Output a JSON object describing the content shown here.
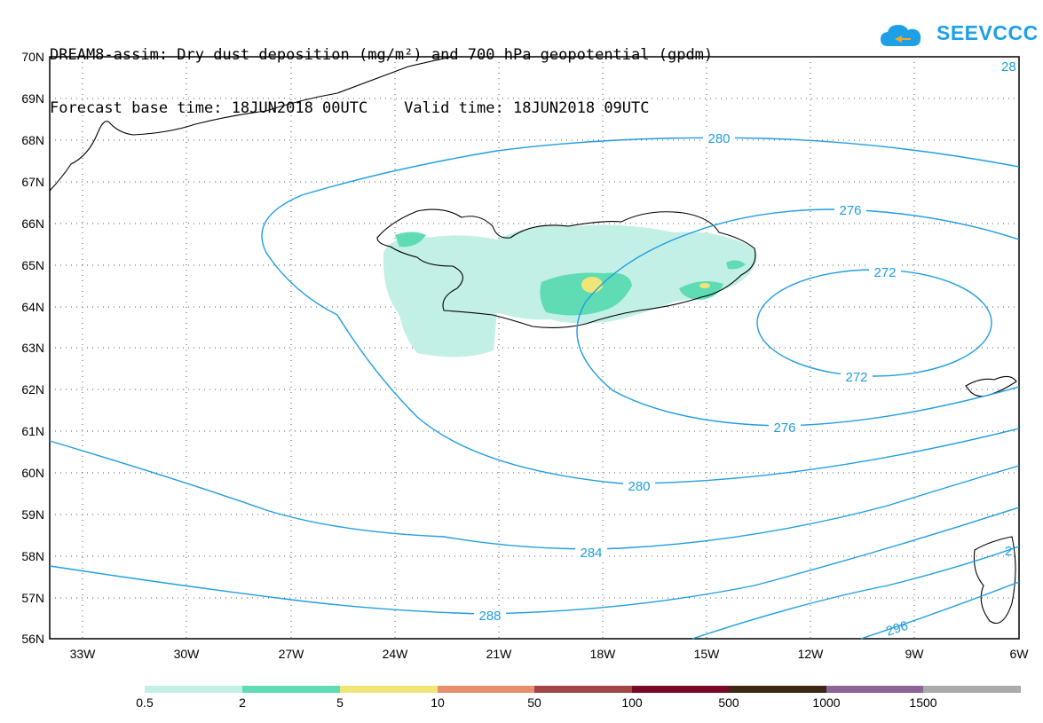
{
  "header": {
    "line1": "DREAM8-assim: Dry dust deposition (mg/m²) and 700 hPa geopotential (gpdm)",
    "line2": "Forecast base time: 18JUN2018 00UTC    Valid time: 18JUN2018 09UTC"
  },
  "logo": {
    "text": "SEEVCCC",
    "color": "#1ea0e6"
  },
  "map": {
    "lat_labels": [
      "70N",
      "69N",
      "68N",
      "67N",
      "66N",
      "65N",
      "64N",
      "63N",
      "62N",
      "61N",
      "60N",
      "59N",
      "58N",
      "57N",
      "56N"
    ],
    "lon_labels": [
      "33W",
      "30W",
      "27W",
      "24W",
      "21W",
      "18W",
      "15W",
      "12W",
      "9W",
      "6W"
    ],
    "contour_color": "#1f9de0",
    "contour_labels": [
      "280",
      "276",
      "272",
      "272",
      "276",
      "280",
      "284",
      "288",
      "296",
      "28",
      "2"
    ]
  },
  "colorbar": {
    "colors": [
      "#c3f0e6",
      "#5fdcb4",
      "#f0e678",
      "#e6906e",
      "#a04646",
      "#780a28",
      "#3c2814",
      "#8c6496",
      "#aaaaaa"
    ],
    "labels": [
      "0.5",
      "2",
      "5",
      "10",
      "50",
      "100",
      "500",
      "1000",
      "1500"
    ]
  }
}
